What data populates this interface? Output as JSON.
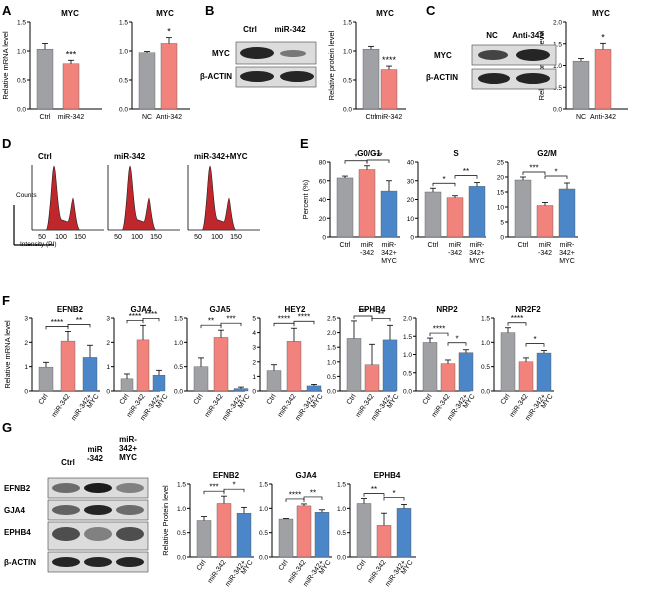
{
  "colors": {
    "gray": "#a0a1a5",
    "red": "#f2827c",
    "blue": "#4a86c8",
    "histogram": "#c0272d"
  },
  "panel_labels": {
    "A": "A",
    "B": "B",
    "C": "C",
    "D": "D",
    "E": "E",
    "F": "F",
    "G": "G"
  },
  "blot_labels": {
    "B": {
      "lanes": [
        "Ctrl",
        "miR-342"
      ],
      "rows": [
        "MYC",
        "β-ACTIN"
      ]
    },
    "C": {
      "lanes": [
        "NC",
        "Anti-342"
      ],
      "rows": [
        "MYC",
        "β-ACTIN"
      ]
    },
    "G": {
      "lanes": [
        "Ctrl",
        "miR\n-342",
        "miR-\n342+\nMYC"
      ],
      "rows": [
        "EFNB2",
        "GJA4",
        "EPHB4",
        "β-ACTIN"
      ]
    }
  },
  "flow": {
    "titles": [
      "Ctrl",
      "miR-342",
      "miR-342+MYC"
    ],
    "ticks": [
      "50",
      "100",
      "150"
    ],
    "ylabel": "Counts",
    "xlabel": "Intensity  (PI)"
  },
  "chart_data": [
    {
      "id": "A1",
      "type": "bar",
      "title": "MYC",
      "ylabel": "Relative mRNA level",
      "categories": [
        "Ctrl",
        "miR-342"
      ],
      "values": [
        1.03,
        0.78
      ],
      "errors": [
        0.1,
        0.06
      ],
      "colors": [
        "gray",
        "red"
      ],
      "ylim": [
        0,
        1.5
      ],
      "yticks": [
        "0.0",
        "0.5",
        "1.0",
        "1.5"
      ],
      "sig": [
        {
          "i": 1,
          "j": 1,
          "label": "***"
        }
      ],
      "rot": false
    },
    {
      "id": "A2",
      "type": "bar",
      "title": "MYC",
      "ylabel": "",
      "categories": [
        "NC",
        "Anti-342"
      ],
      "values": [
        0.97,
        1.13
      ],
      "errors": [
        0.02,
        0.1
      ],
      "colors": [
        "gray",
        "red"
      ],
      "ylim": [
        0,
        1.5
      ],
      "yticks": [
        "0.0",
        "0.5",
        "1.0",
        "1.5"
      ],
      "sig": [
        {
          "i": 1,
          "j": 1,
          "label": "*"
        }
      ],
      "rot": false
    },
    {
      "id": "B",
      "type": "bar",
      "title": "MYC",
      "ylabel": "Relative protein level",
      "categories": [
        "Ctrl",
        "miR-342"
      ],
      "values": [
        1.03,
        0.68
      ],
      "errors": [
        0.05,
        0.06
      ],
      "colors": [
        "gray",
        "red"
      ],
      "ylim": [
        0,
        1.5
      ],
      "yticks": [
        "0.0",
        "0.5",
        "1.0",
        "1.5"
      ],
      "sig": [
        {
          "i": 1,
          "j": 1,
          "label": "****"
        }
      ],
      "rot": false
    },
    {
      "id": "C",
      "type": "bar",
      "title": "MYC",
      "ylabel": "Relative protein level",
      "categories": [
        "NC",
        "Anti-342"
      ],
      "values": [
        1.1,
        1.37
      ],
      "errors": [
        0.06,
        0.14
      ],
      "colors": [
        "gray",
        "red"
      ],
      "ylim": [
        0,
        2.0
      ],
      "yticks": [
        "0.0",
        "0.5",
        "1.0",
        "1.5",
        "2.0"
      ],
      "sig": [
        {
          "i": 1,
          "j": 1,
          "label": "*"
        }
      ],
      "rot": false
    },
    {
      "id": "E1",
      "type": "bar",
      "title": "G0/G1",
      "ylabel": "Percent (%)",
      "categories": [
        "Ctrl",
        "miR\n-342",
        "miR-\n342+\nMYC"
      ],
      "values": [
        63,
        72,
        49
      ],
      "errors": [
        2,
        4,
        11
      ],
      "colors": [
        "gray",
        "red",
        "blue"
      ],
      "ylim": [
        0,
        80
      ],
      "yticks": [
        "0",
        "20",
        "40",
        "60",
        "80"
      ],
      "sig": [
        {
          "i": 0,
          "j": 1,
          "label": "*"
        },
        {
          "i": 1,
          "j": 2,
          "label": "***"
        }
      ],
      "rot": false
    },
    {
      "id": "E2",
      "type": "bar",
      "title": "S",
      "ylabel": "",
      "categories": [
        "Ctrl",
        "miR\n-342",
        "miR-\n342+\nMYC"
      ],
      "values": [
        24,
        21,
        27
      ],
      "errors": [
        2,
        1,
        2
      ],
      "colors": [
        "gray",
        "red",
        "blue"
      ],
      "ylim": [
        0,
        40
      ],
      "yticks": [
        "0",
        "10",
        "20",
        "30",
        "40"
      ],
      "sig": [
        {
          "i": 0,
          "j": 1,
          "label": "*"
        },
        {
          "i": 1,
          "j": 2,
          "label": "**"
        }
      ],
      "rot": false
    },
    {
      "id": "E3",
      "type": "bar",
      "title": "G2/M",
      "ylabel": "",
      "categories": [
        "Ctrl",
        "miR\n-342",
        "miR-\n342+\nMYC"
      ],
      "values": [
        19,
        10.5,
        16
      ],
      "errors": [
        1,
        1,
        2
      ],
      "colors": [
        "gray",
        "red",
        "blue"
      ],
      "ylim": [
        0,
        25
      ],
      "yticks": [
        "0",
        "5",
        "10",
        "15",
        "20",
        "25"
      ],
      "sig": [
        {
          "i": 0,
          "j": 1,
          "label": "***"
        },
        {
          "i": 1,
          "j": 2,
          "label": "*"
        }
      ],
      "rot": false
    },
    {
      "id": "F1",
      "type": "bar",
      "title": "EFNB2",
      "ylabel": "Relative mRNA level",
      "categories": [
        "Ctrl",
        "miR-342",
        "miR-342+\nMYC"
      ],
      "values": [
        0.98,
        2.05,
        1.38
      ],
      "errors": [
        0.2,
        0.4,
        0.5
      ],
      "colors": [
        "gray",
        "red",
        "blue"
      ],
      "ylim": [
        0,
        3
      ],
      "yticks": [
        "0",
        "1",
        "2",
        "3"
      ],
      "sig": [
        {
          "i": 0,
          "j": 1,
          "label": "****"
        },
        {
          "i": 1,
          "j": 2,
          "label": "**"
        }
      ],
      "rot": true
    },
    {
      "id": "F2",
      "type": "bar",
      "title": "GJA4",
      "ylabel": "",
      "categories": [
        "Ctrl",
        "miR-342",
        "miR-342+\nMYC"
      ],
      "values": [
        0.5,
        2.1,
        0.65
      ],
      "errors": [
        0.2,
        0.6,
        0.2
      ],
      "colors": [
        "gray",
        "red",
        "blue"
      ],
      "ylim": [
        0,
        3
      ],
      "yticks": [
        "0",
        "1",
        "2",
        "3"
      ],
      "sig": [
        {
          "i": 0,
          "j": 1,
          "label": "****"
        },
        {
          "i": 1,
          "j": 2,
          "label": "****"
        }
      ],
      "rot": true
    },
    {
      "id": "F3",
      "type": "bar",
      "title": "GJA5",
      "ylabel": "",
      "categories": [
        "Ctrl",
        "miR-342",
        "miR-342+\nMYC"
      ],
      "values": [
        0.5,
        1.1,
        0.05
      ],
      "errors": [
        0.18,
        0.15,
        0.03
      ],
      "colors": [
        "gray",
        "red",
        "blue"
      ],
      "ylim": [
        0,
        1.5
      ],
      "yticks": [
        "0.0",
        "0.5",
        "1.0",
        "1.5"
      ],
      "sig": [
        {
          "i": 0,
          "j": 1,
          "label": "**"
        },
        {
          "i": 1,
          "j": 2,
          "label": "***"
        }
      ],
      "rot": true
    },
    {
      "id": "F4",
      "type": "bar",
      "title": "HEY2",
      "ylabel": "",
      "categories": [
        "Ctrl",
        "miR-342",
        "miR-342+\nMYC"
      ],
      "values": [
        1.4,
        3.4,
        0.35
      ],
      "errors": [
        0.4,
        0.9,
        0.1
      ],
      "colors": [
        "gray",
        "red",
        "blue"
      ],
      "ylim": [
        0,
        5
      ],
      "yticks": [
        "0",
        "1",
        "2",
        "3",
        "4",
        "5"
      ],
      "sig": [
        {
          "i": 0,
          "j": 1,
          "label": "****"
        },
        {
          "i": 1,
          "j": 2,
          "label": "****"
        }
      ],
      "rot": true
    },
    {
      "id": "F5",
      "type": "bar",
      "title": "EPHB4",
      "ylabel": "",
      "categories": [
        "Ctrl",
        "miR-342",
        "miR-342+\nMYC"
      ],
      "values": [
        1.8,
        0.9,
        1.75
      ],
      "errors": [
        0.6,
        0.7,
        0.5
      ],
      "colors": [
        "gray",
        "red",
        "blue"
      ],
      "ylim": [
        0,
        2.5
      ],
      "yticks": [
        "0.0",
        "0.5",
        "1.0",
        "1.5",
        "2.0",
        "2.5"
      ],
      "sig": [
        {
          "i": 0,
          "j": 1,
          "label": "***"
        },
        {
          "i": 1,
          "j": 2,
          "label": "**"
        }
      ],
      "rot": true
    },
    {
      "id": "F6",
      "type": "bar",
      "title": "NRP2",
      "ylabel": "",
      "categories": [
        "Ctrl",
        "miR-342",
        "miR-342+\nMYC"
      ],
      "values": [
        1.33,
        0.75,
        1.05
      ],
      "errors": [
        0.12,
        0.1,
        0.08
      ],
      "colors": [
        "gray",
        "red",
        "blue"
      ],
      "ylim": [
        0,
        2.0
      ],
      "yticks": [
        "0.0",
        "0.5",
        "1.0",
        "1.5",
        "2.0"
      ],
      "sig": [
        {
          "i": 0,
          "j": 1,
          "label": "****"
        },
        {
          "i": 1,
          "j": 2,
          "label": "*"
        }
      ],
      "rot": true
    },
    {
      "id": "F7",
      "type": "bar",
      "title": "NR2F2",
      "ylabel": "",
      "categories": [
        "Ctrl",
        "miR-342",
        "miR-342+\nMYC"
      ],
      "values": [
        1.2,
        0.6,
        0.78
      ],
      "errors": [
        0.1,
        0.08,
        0.05
      ],
      "colors": [
        "gray",
        "red",
        "blue"
      ],
      "ylim": [
        0,
        1.5
      ],
      "yticks": [
        "0.0",
        "0.5",
        "1.0",
        "1.5"
      ],
      "sig": [
        {
          "i": 0,
          "j": 1,
          "label": "****"
        },
        {
          "i": 1,
          "j": 2,
          "label": "*"
        }
      ],
      "rot": true
    },
    {
      "id": "G1",
      "type": "bar",
      "title": "EFNB2",
      "ylabel": "Relative Protein level",
      "categories": [
        "Ctrl",
        "miR-342",
        "miR-342+\nMYC"
      ],
      "values": [
        0.75,
        1.1,
        0.9
      ],
      "errors": [
        0.08,
        0.15,
        0.12
      ],
      "colors": [
        "gray",
        "red",
        "blue"
      ],
      "ylim": [
        0,
        1.5
      ],
      "yticks": [
        "0.0",
        "0.5",
        "1.0",
        "1.5"
      ],
      "sig": [
        {
          "i": 0,
          "j": 1,
          "label": "***"
        },
        {
          "i": 1,
          "j": 2,
          "label": "*"
        }
      ],
      "rot": true
    },
    {
      "id": "G2",
      "type": "bar",
      "title": "GJA4",
      "ylabel": "",
      "categories": [
        "Ctrl",
        "miR-342",
        "miR-342+\nMYC"
      ],
      "values": [
        0.78,
        1.05,
        0.92
      ],
      "errors": [
        0.01,
        0.04,
        0.05
      ],
      "colors": [
        "gray",
        "red",
        "blue"
      ],
      "ylim": [
        0,
        1.5
      ],
      "yticks": [
        "0.0",
        "0.5",
        "1.0",
        "1.5"
      ],
      "sig": [
        {
          "i": 0,
          "j": 1,
          "label": "****"
        },
        {
          "i": 1,
          "j": 2,
          "label": "**"
        }
      ],
      "rot": true
    },
    {
      "id": "G3",
      "type": "bar",
      "title": "EPHB4",
      "ylabel": "",
      "categories": [
        "Ctrl",
        "miR-342",
        "miR-342+\nMYC"
      ],
      "values": [
        1.1,
        0.65,
        1.0
      ],
      "errors": [
        0.1,
        0.25,
        0.08
      ],
      "colors": [
        "gray",
        "red",
        "blue"
      ],
      "ylim": [
        0,
        1.5
      ],
      "yticks": [
        "0.0",
        "0.5",
        "1.0",
        "1.5"
      ],
      "sig": [
        {
          "i": 0,
          "j": 1,
          "label": "**"
        },
        {
          "i": 1,
          "j": 2,
          "label": "*"
        }
      ],
      "rot": true
    }
  ]
}
